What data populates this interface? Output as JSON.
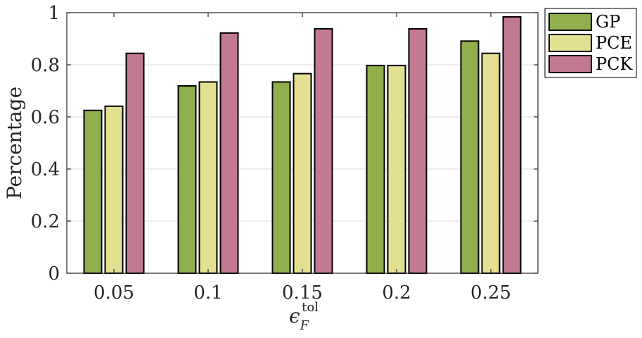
{
  "chart_data": {
    "type": "bar",
    "categories": [
      "0.05",
      "0.1",
      "0.15",
      "0.2",
      "0.25"
    ],
    "series": [
      {
        "name": "GP",
        "values": [
          0.625,
          0.719,
          0.734,
          0.797,
          0.891
        ],
        "color": "#8faf4d"
      },
      {
        "name": "PCE",
        "values": [
          0.641,
          0.734,
          0.766,
          0.797,
          0.844
        ],
        "color": "#e3e092"
      },
      {
        "name": "PCK",
        "values": [
          0.844,
          0.922,
          0.938,
          0.938,
          0.984
        ],
        "color": "#c27a93"
      }
    ],
    "xlabel": "ϵ",
    "xlabel_sub": "F",
    "xlabel_sup": "tol",
    "ylabel": "Percentage",
    "ylim": [
      0,
      1
    ],
    "yticks": [
      "0",
      "0.2",
      "0.4",
      "0.6",
      "0.8",
      "1"
    ],
    "grid": true,
    "legend_position": "outside-top-right"
  }
}
